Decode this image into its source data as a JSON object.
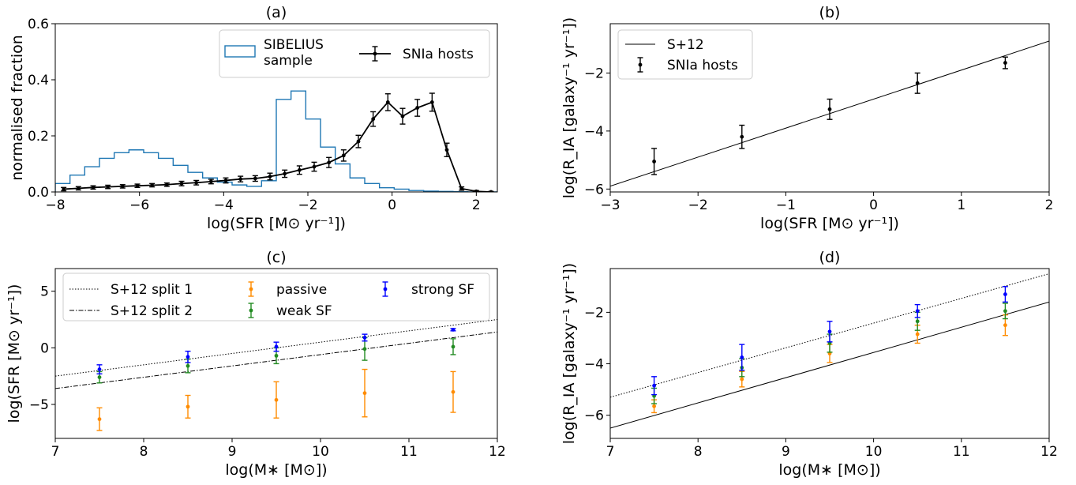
{
  "colors": {
    "axis": "#000000",
    "hist": "#1f77b4",
    "hosts": "#000000",
    "passive": "#ff8c00",
    "weak_sf": "#228b22",
    "strong_sf": "#0000ff"
  },
  "chart_data": [
    {
      "id": "a",
      "type": "line",
      "title": "(a)",
      "xlabel": "log(SFR [M⊙ yr⁻¹])",
      "ylabel": "normalised fraction",
      "xlim": [
        -8,
        2.5
      ],
      "ylim": [
        0,
        0.6
      ],
      "xticks": [
        -8,
        -6,
        -4,
        -2,
        0,
        2
      ],
      "yticks": [
        0.0,
        0.2,
        0.4,
        0.6
      ],
      "ytick_labels": [
        "0.0",
        "0.2",
        "0.4",
        "0.6"
      ],
      "legend": {
        "placement": "top-right",
        "entries": [
          "SIBELIUS sample",
          "SNIa hosts"
        ]
      },
      "series": [
        {
          "name": "SIBELIUS sample",
          "kind": "step-histogram",
          "edges": [
            -8.0,
            -7.65,
            -7.3,
            -6.95,
            -6.6,
            -6.25,
            -5.9,
            -5.55,
            -5.2,
            -4.85,
            -4.5,
            -4.15,
            -3.8,
            -3.45,
            -3.1,
            -2.75,
            -2.4,
            -2.05,
            -1.7,
            -1.35,
            -1.0,
            -0.65,
            -0.3,
            0.05,
            0.4,
            0.75,
            1.1,
            1.45,
            1.8,
            2.15,
            2.5
          ],
          "values": [
            0.03,
            0.06,
            0.09,
            0.12,
            0.14,
            0.15,
            0.14,
            0.12,
            0.095,
            0.07,
            0.05,
            0.035,
            0.025,
            0.02,
            0.04,
            0.33,
            0.36,
            0.26,
            0.16,
            0.1,
            0.05,
            0.03,
            0.015,
            0.01,
            0.005,
            0.003,
            0.002,
            0.001,
            0.0,
            0.0
          ]
        },
        {
          "name": "SNIa hosts",
          "kind": "errorbar-line",
          "x": [
            -7.8,
            -7.45,
            -7.1,
            -6.75,
            -6.4,
            -6.05,
            -5.7,
            -5.35,
            -5.0,
            -4.65,
            -4.3,
            -3.95,
            -3.6,
            -3.25,
            -2.9,
            -2.55,
            -2.2,
            -1.85,
            -1.5,
            -1.15,
            -0.8,
            -0.45,
            -0.1,
            0.25,
            0.6,
            0.95,
            1.3,
            1.65,
            2.0,
            2.35
          ],
          "y": [
            0.01,
            0.013,
            0.016,
            0.018,
            0.02,
            0.022,
            0.024,
            0.026,
            0.03,
            0.033,
            0.037,
            0.041,
            0.046,
            0.048,
            0.055,
            0.065,
            0.078,
            0.09,
            0.105,
            0.13,
            0.18,
            0.26,
            0.32,
            0.27,
            0.3,
            0.32,
            0.15,
            0.012,
            0.002,
            0.0
          ],
          "yerr": [
            0.006,
            0.006,
            0.006,
            0.006,
            0.006,
            0.006,
            0.006,
            0.006,
            0.008,
            0.008,
            0.008,
            0.009,
            0.01,
            0.01,
            0.012,
            0.013,
            0.015,
            0.016,
            0.018,
            0.02,
            0.022,
            0.026,
            0.03,
            0.028,
            0.03,
            0.032,
            0.024,
            0.006,
            0.003,
            0.002
          ]
        }
      ]
    },
    {
      "id": "b",
      "type": "scatter",
      "title": "(b)",
      "xlabel": "log(SFR [M⊙ yr⁻¹])",
      "ylabel": "log(R_IA [galaxy⁻¹ yr⁻¹])",
      "xlim": [
        -3,
        2
      ],
      "ylim": [
        -6.1,
        -0.3
      ],
      "xticks": [
        -3,
        -2,
        -1,
        0,
        1,
        2
      ],
      "yticks": [
        -6,
        -4,
        -2
      ],
      "legend": {
        "placement": "top-left",
        "entries": [
          "S+12",
          "SNIa hosts"
        ]
      },
      "series": [
        {
          "name": "S+12",
          "kind": "line",
          "x": [
            -3,
            2
          ],
          "y": [
            -5.9,
            -0.9
          ]
        },
        {
          "name": "SNIa hosts",
          "kind": "errorbar",
          "x": [
            -2.5,
            -1.5,
            -0.5,
            0.5,
            1.5
          ],
          "y": [
            -5.05,
            -4.2,
            -3.25,
            -2.35,
            -1.65
          ],
          "yerr": [
            0.45,
            0.4,
            0.35,
            0.35,
            0.2
          ]
        }
      ]
    },
    {
      "id": "c",
      "type": "scatter",
      "title": "(c)",
      "xlabel": "log(M∗ [M⊙])",
      "ylabel": "log(SFR [M⊙ yr⁻¹])",
      "xlim": [
        7,
        12
      ],
      "ylim": [
        -8,
        7
      ],
      "xticks": [
        7,
        8,
        9,
        10,
        11,
        12
      ],
      "yticks": [
        -5,
        0,
        5
      ],
      "legend": {
        "placement": "top",
        "entries": [
          "S+12 split 1",
          "S+12 split 2",
          "passive",
          "weak SF",
          "strong SF"
        ]
      },
      "series": [
        {
          "name": "S+12 split 1",
          "kind": "line",
          "dash": "dotted",
          "x": [
            7,
            12
          ],
          "y": [
            -2.5,
            2.5
          ]
        },
        {
          "name": "S+12 split 2",
          "kind": "line",
          "dash": "dashdot",
          "x": [
            7,
            12
          ],
          "y": [
            -3.6,
            1.4
          ]
        },
        {
          "name": "passive",
          "kind": "errorbar",
          "color": "passive",
          "x": [
            7.5,
            8.5,
            9.5,
            10.5,
            11.5
          ],
          "y": [
            -6.3,
            -5.2,
            -4.6,
            -4.0,
            -3.9
          ],
          "yerr": [
            1.0,
            1.0,
            1.6,
            2.1,
            1.8
          ]
        },
        {
          "name": "weak SF",
          "kind": "errorbar",
          "color": "weak_sf",
          "x": [
            7.5,
            8.5,
            9.5,
            10.5,
            11.5
          ],
          "y": [
            -2.6,
            -1.6,
            -0.7,
            -0.1,
            0.1
          ],
          "yerr": [
            0.5,
            0.6,
            0.7,
            1.0,
            0.7
          ]
        },
        {
          "name": "strong SF",
          "kind": "errorbar",
          "color": "strong_sf",
          "x": [
            7.5,
            8.5,
            9.5,
            10.5,
            11.5
          ],
          "y": [
            -1.9,
            -0.8,
            0.1,
            0.9,
            1.6
          ],
          "yerr": [
            0.4,
            0.5,
            0.4,
            0.3,
            0.1
          ]
        }
      ]
    },
    {
      "id": "d",
      "type": "scatter",
      "title": "(d)",
      "xlabel": "log(M∗ [M⊙])",
      "ylabel": "log(R_IA [galaxy⁻¹ yr⁻¹])",
      "xlim": [
        7,
        12
      ],
      "ylim": [
        -6.9,
        -0.3
      ],
      "xticks": [
        7,
        8,
        9,
        10,
        11,
        12
      ],
      "yticks": [
        -6,
        -4,
        -2
      ],
      "series": [
        {
          "name": "S+12 split 1",
          "kind": "line",
          "dash": "dotted",
          "x": [
            7,
            12
          ],
          "y": [
            -5.3,
            -0.5
          ]
        },
        {
          "name": "S+12 split 2",
          "kind": "line",
          "dash": "solid",
          "x": [
            7,
            12
          ],
          "y": [
            -6.5,
            -1.6
          ]
        },
        {
          "name": "passive",
          "kind": "errorbar",
          "color": "passive",
          "x": [
            7.5,
            8.5,
            9.5,
            10.5,
            11.5
          ],
          "y": [
            -5.65,
            -4.6,
            -3.6,
            -2.85,
            -2.5
          ],
          "yerr": [
            0.25,
            0.3,
            0.35,
            0.35,
            0.4
          ]
        },
        {
          "name": "weak SF",
          "kind": "errorbar",
          "color": "weak_sf",
          "x": [
            7.5,
            8.5,
            9.5,
            10.5,
            11.5
          ],
          "y": [
            -5.25,
            -4.15,
            -3.2,
            -2.35,
            -1.95
          ],
          "yerr": [
            0.3,
            0.35,
            0.35,
            0.35,
            0.3
          ]
        },
        {
          "name": "strong SF",
          "kind": "errorbar",
          "color": "strong_sf",
          "x": [
            7.5,
            8.5,
            9.5,
            10.5,
            11.5
          ],
          "y": [
            -4.85,
            -3.75,
            -2.75,
            -1.95,
            -1.3
          ],
          "yerr": [
            0.35,
            0.5,
            0.4,
            0.25,
            0.3
          ]
        }
      ]
    }
  ]
}
